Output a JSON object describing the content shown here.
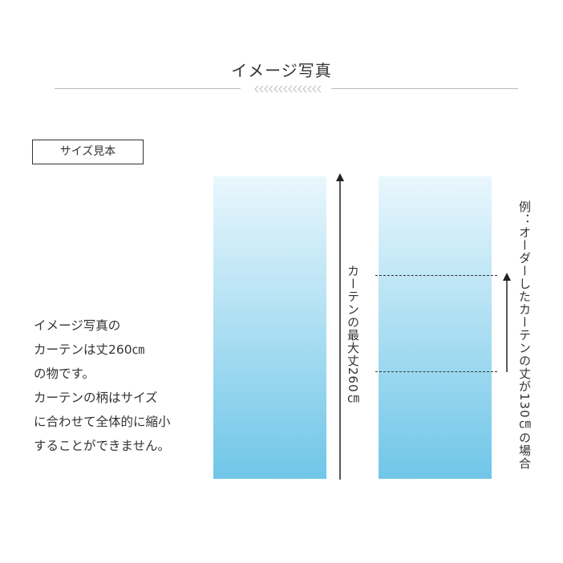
{
  "header": {
    "title": "イメージ写真"
  },
  "size_label": "サイズ見本",
  "description": [
    "イメージ写真の",
    "カーテンは丈260㎝",
    "の物です。",
    "カーテンの柄はサイズ",
    "に合わせて全体的に縮小",
    "することができません。"
  ],
  "max_length_label": "カーテンの最大丈260㎝",
  "example_label": "例：オーダーしたカーテンの丈が130㎝の場合",
  "colors": {
    "curtain_top": "#e9f7fd",
    "curtain_bottom": "#70c6e8",
    "text": "#333333"
  }
}
